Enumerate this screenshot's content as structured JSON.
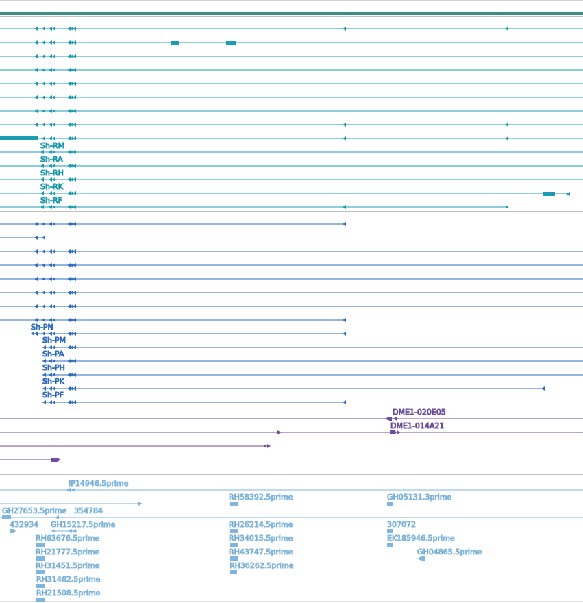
{
  "colors": {
    "transcript": "#1a9db3",
    "protein": "#2e6dc4",
    "clone": "#6e4ea0",
    "est": "#7fb6de",
    "divider": "#c0c0c0",
    "ruler": "#3c8a8a"
  },
  "transcript_labels": [
    "Sh-RM",
    "Sh-RA",
    "Sh-RH",
    "Sh-RK",
    "Sh-RF"
  ],
  "protein_labels": [
    "Sh-PN",
    "Sh-PM",
    "Sh-PA",
    "Sh-PH",
    "Sh-PK",
    "Sh-PF"
  ],
  "clone_labels": [
    "DME1-020E05",
    "DME1-014A21"
  ],
  "est_labels": [
    "IP14946.5prime",
    "RH58392.5prime",
    "GH05131.3prime",
    "GH27653.5prime",
    "354784",
    "432934",
    "GH15217.5prime",
    "RH26214.5prime",
    "307072",
    "RH63676.5prime",
    "RH34015.5prime",
    "EK185946.5prime",
    "RH21777.5prime",
    "RH43747.5prime",
    "GH04865.5prime",
    "RH31451.5prime",
    "RH36262.5prime",
    "RH31462.5prime",
    "RH21508.5prime"
  ]
}
